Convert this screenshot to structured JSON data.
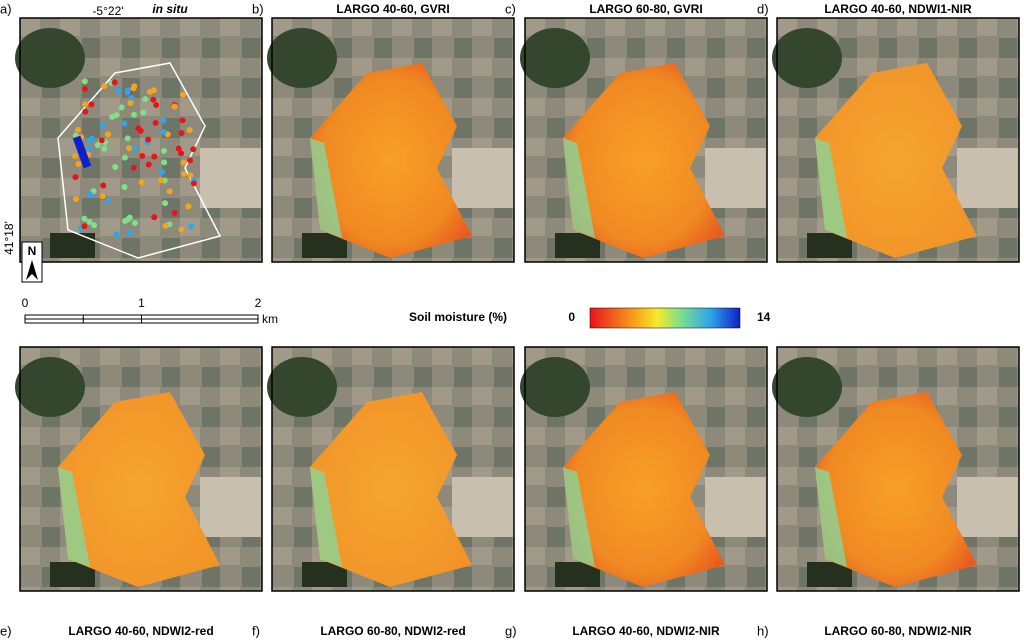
{
  "panels": [
    {
      "letter": "a)",
      "title": "in situ"
    },
    {
      "letter": "b)",
      "title": "LARGO 40-60, GVRI"
    },
    {
      "letter": "c)",
      "title": "LARGO 60-80, GVRI"
    },
    {
      "letter": "d)",
      "title": "LARGO 40-60, NDWI1-NIR"
    },
    {
      "letter": "e)",
      "title": "LARGO 40-60, NDWI2-red"
    },
    {
      "letter": "f)",
      "title": "LARGO 60-80, NDWI2-red"
    },
    {
      "letter": "g)",
      "title": "LARGO 40-60, NDWI2-NIR"
    },
    {
      "letter": "h)",
      "title": "LARGO 60-80, NDWI2-NIR"
    }
  ],
  "map_labels": {
    "longitude": "-5°22'",
    "latitude": "41°18'",
    "north": "N"
  },
  "scale_bar": {
    "ticks": [
      0,
      1,
      2
    ],
    "unit": "km"
  },
  "colorbar": {
    "label": "Soil moisture (%)",
    "min": 0,
    "max": 14
  }
}
